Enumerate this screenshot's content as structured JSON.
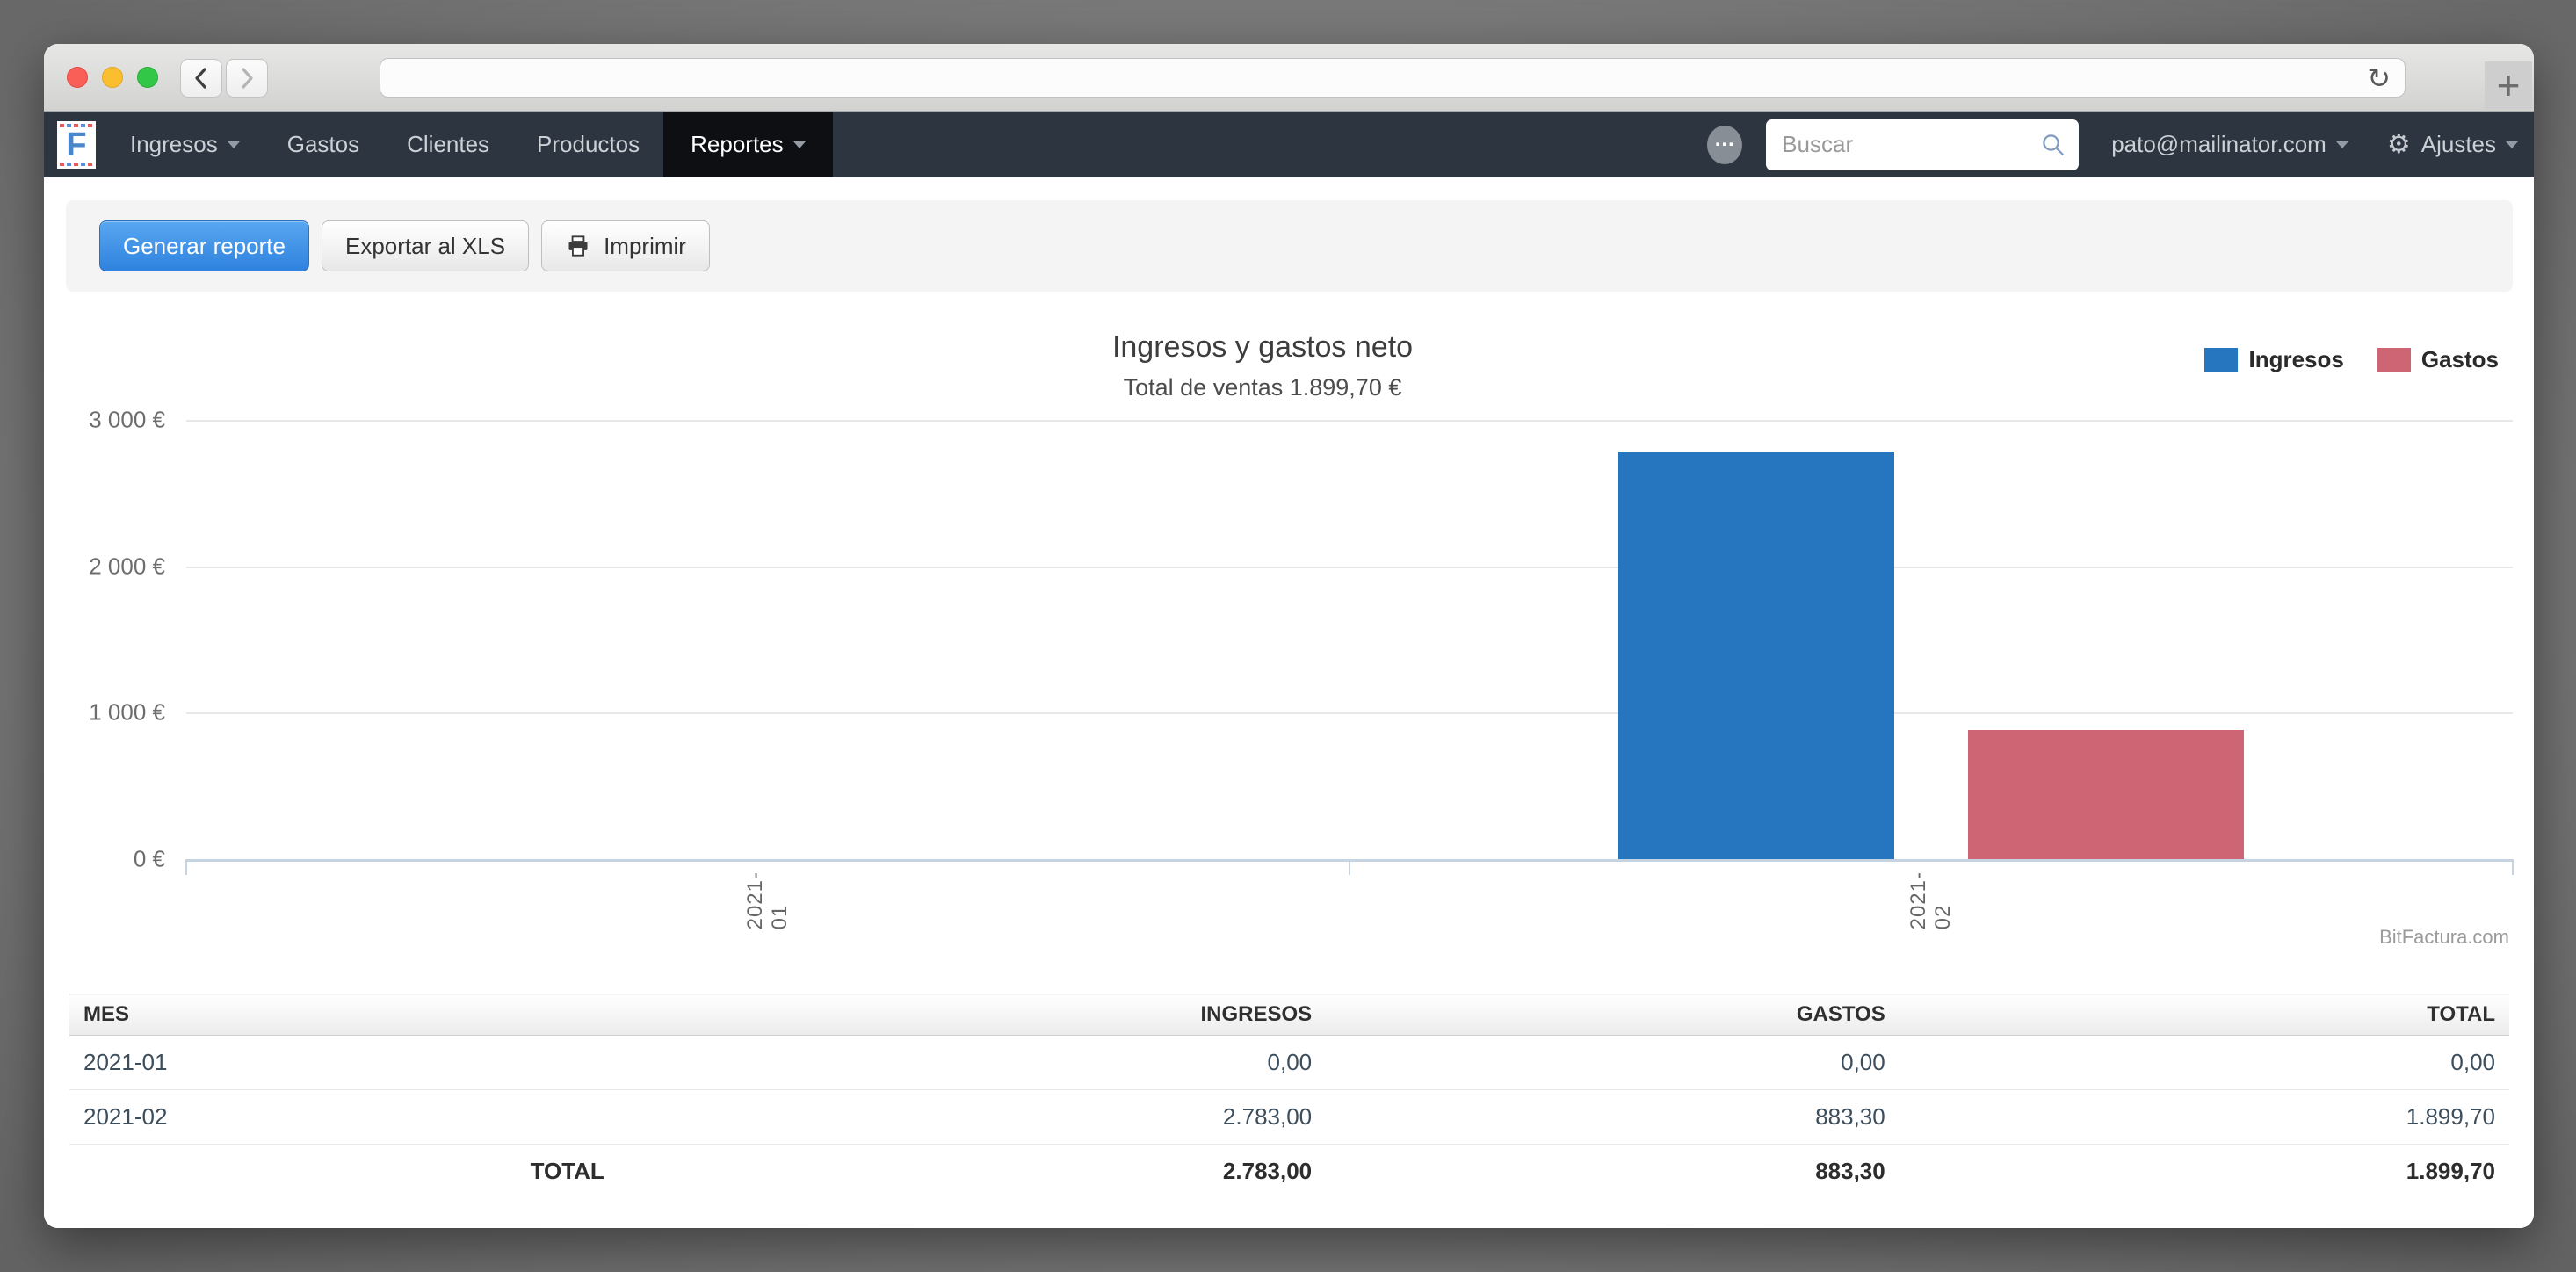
{
  "browser": {
    "url_value": "",
    "icons": {
      "reload": "↻",
      "new_tab": "+"
    }
  },
  "navbar": {
    "logo_letter": "F",
    "items": [
      {
        "label": "Ingresos",
        "caret": true
      },
      {
        "label": "Gastos",
        "caret": false
      },
      {
        "label": "Clientes",
        "caret": false
      },
      {
        "label": "Productos",
        "caret": false
      },
      {
        "label": "Reportes",
        "caret": true,
        "active": true
      }
    ],
    "badge_label": "...",
    "search_placeholder": "Buscar",
    "user_email": "pato@mailinator.com",
    "settings_label": "Ajustes",
    "gear_icon": "⚙"
  },
  "toolbar": {
    "generate_label": "Generar reporte",
    "export_label": "Exportar al XLS",
    "print_label": "Imprimir"
  },
  "chart_data": {
    "type": "bar",
    "title": "Ingresos y gastos neto",
    "subtitle": "Total de ventas 1.899,70 €",
    "categories": [
      "2021-01",
      "2021-02"
    ],
    "series": [
      {
        "name": "Ingresos",
        "color": "#2576be",
        "values": [
          0,
          2783.0
        ]
      },
      {
        "name": "Gastos",
        "color": "#cd6575",
        "values": [
          0,
          883.3
        ]
      }
    ],
    "yticks": [
      "3 000 €",
      "2 000 €",
      "1 000 €",
      "0 €"
    ],
    "ylim": [
      0,
      3000
    ],
    "grid": true,
    "legend_position": "top-right",
    "watermark": "BitFactura.com"
  },
  "table": {
    "headers": [
      "MES",
      "INGRESOS",
      "GASTOS",
      "TOTAL"
    ],
    "rows": [
      {
        "mes": "2021-01",
        "ingresos": "0,00",
        "gastos": "0,00",
        "total": "0,00"
      },
      {
        "mes": "2021-02",
        "ingresos": "2.783,00",
        "gastos": "883,30",
        "total": "1.899,70"
      }
    ],
    "total_row": {
      "label": "TOTAL",
      "ingresos": "2.783,00",
      "gastos": "883,30",
      "total": "1.899,70"
    }
  },
  "colors": {
    "ingresos_blue": "#2576be",
    "gastos_red": "#cd6575",
    "link_blue": "#3e87c8",
    "primary_button_blue": "#2f82dd",
    "navbar_bg": "#2c3540"
  }
}
